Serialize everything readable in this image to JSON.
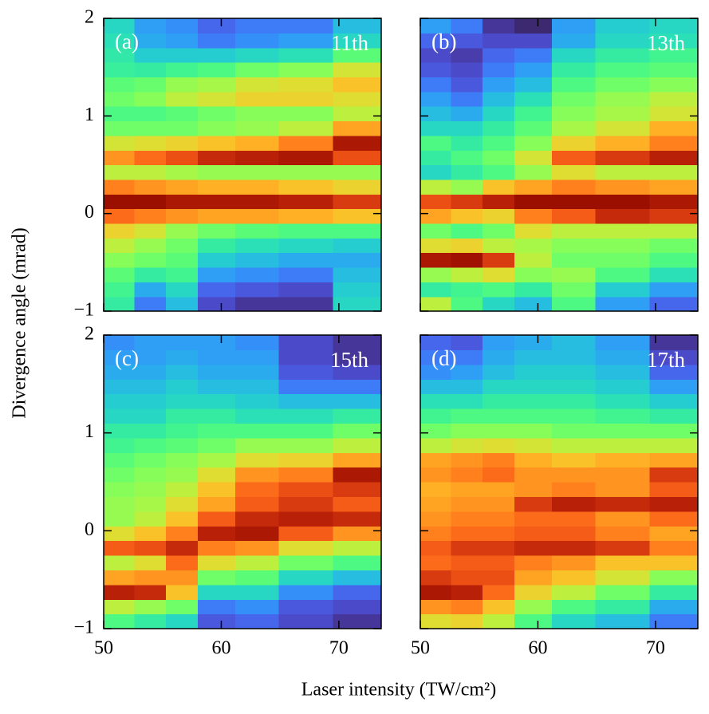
{
  "shared": {
    "xlabel": "Laser intensity (TW/cm²)",
    "ylabel": "Divergence angle (mrad)"
  },
  "chart_data": [
    {
      "type": "heatmap",
      "label": "(a)",
      "annotation": "11th",
      "colormap": "turbo",
      "zlim": [
        0,
        100
      ],
      "xlim": [
        50,
        73.6
      ],
      "ylim": [
        -1,
        2
      ],
      "xticks": [
        50,
        60,
        70
      ],
      "yticks": [
        {
          "value": -1,
          "label": "−1"
        },
        0,
        1,
        2
      ],
      "x_edges": [
        50,
        52.6,
        55.3,
        58,
        61.2,
        64.9,
        69.5,
        73.6
      ],
      "y_edges": [
        -1,
        -0.85,
        -0.7,
        -0.55,
        -0.4,
        -0.25,
        -0.1,
        0.05,
        0.2,
        0.35,
        0.5,
        0.65,
        0.8,
        0.95,
        1.1,
        1.25,
        1.4,
        1.55,
        1.7,
        1.85,
        2
      ],
      "z": [
        [
          35,
          38,
          42,
          48,
          55,
          62,
          78,
          95,
          75,
          55,
          72,
          58,
          45,
          40,
          45,
          42,
          36,
          34,
          32,
          30
        ],
        [
          15,
          22,
          35,
          45,
          50,
          58,
          75,
          95,
          72,
          55,
          78,
          60,
          45,
          40,
          48,
          44,
          35,
          28,
          22,
          20
        ],
        [
          25,
          30,
          38,
          42,
          45,
          50,
          72,
          92,
          70,
          52,
          82,
          62,
          45,
          42,
          55,
          50,
          38,
          28,
          20,
          18
        ],
        [
          8,
          12,
          20,
          28,
          35,
          45,
          70,
          92,
          68,
          50,
          88,
          65,
          48,
          45,
          58,
          52,
          40,
          28,
          15,
          12
        ],
        [
          5,
          10,
          18,
          25,
          32,
          42,
          70,
          92,
          68,
          50,
          90,
          68,
          50,
          48,
          62,
          58,
          45,
          30,
          18,
          15
        ],
        [
          5,
          8,
          15,
          22,
          30,
          40,
          68,
          90,
          65,
          50,
          92,
          75,
          55,
          48,
          62,
          60,
          48,
          32,
          20,
          15
        ],
        [
          30,
          28,
          25,
          22,
          28,
          40,
          65,
          85,
          62,
          50,
          82,
          92,
          70,
          55,
          60,
          65,
          58,
          42,
          30,
          25
        ]
      ]
    },
    {
      "type": "heatmap",
      "label": "(b)",
      "annotation": "13th",
      "colormap": "turbo",
      "zlim": [
        0,
        100
      ],
      "xlim": [
        50,
        73.6
      ],
      "ylim": [
        -1,
        2
      ],
      "xticks": [
        50,
        60,
        70
      ],
      "yticks": [
        -1,
        0,
        1,
        2
      ],
      "x_edges": [
        50,
        52.6,
        55.3,
        58,
        61.2,
        64.9,
        69.5,
        73.6
      ],
      "y_edges": [
        -1,
        -0.85,
        -0.7,
        -0.55,
        -0.4,
        -0.25,
        -0.1,
        0.05,
        0.2,
        0.35,
        0.5,
        0.65,
        0.8,
        0.95,
        1.1,
        1.25,
        1.4,
        1.55,
        1.7,
        1.85,
        2
      ],
      "z": [
        [
          55,
          35,
          50,
          92,
          60,
          45,
          70,
          82,
          55,
          30,
          35,
          40,
          30,
          25,
          20,
          15,
          10,
          8,
          12,
          20
        ],
        [
          40,
          38,
          55,
          94,
          62,
          40,
          65,
          85,
          50,
          35,
          40,
          35,
          30,
          22,
          15,
          10,
          8,
          6,
          10,
          15
        ],
        [
          30,
          40,
          60,
          85,
          55,
          45,
          62,
          90,
          65,
          40,
          45,
          40,
          35,
          30,
          25,
          20,
          15,
          12,
          8,
          5
        ],
        [
          25,
          35,
          48,
          55,
          52,
          60,
          75,
          95,
          70,
          50,
          58,
          48,
          42,
          38,
          32,
          25,
          20,
          15,
          8,
          3
        ],
        [
          40,
          45,
          50,
          45,
          48,
          55,
          80,
          95,
          75,
          60,
          80,
          62,
          52,
          48,
          45,
          40,
          35,
          30,
          22,
          20
        ],
        [
          20,
          28,
          40,
          45,
          48,
          55,
          88,
          95,
          72,
          55,
          85,
          68,
          58,
          52,
          50,
          45,
          40,
          35,
          30,
          28
        ],
        [
          12,
          20,
          32,
          40,
          45,
          55,
          85,
          92,
          70,
          55,
          90,
          75,
          68,
          58,
          55,
          48,
          42,
          38,
          32,
          30
        ]
      ]
    },
    {
      "type": "heatmap",
      "label": "(c)",
      "annotation": "15th",
      "colormap": "turbo",
      "zlim": [
        0,
        100
      ],
      "xlim": [
        50,
        73.6
      ],
      "ylim": [
        -1,
        2
      ],
      "xticks": [
        50,
        60,
        70
      ],
      "yticks": [
        {
          "value": -1,
          "label": "−1"
        },
        0,
        1,
        2
      ],
      "x_edges": [
        50,
        52.6,
        55.3,
        58,
        61.2,
        64.9,
        69.5,
        73.6
      ],
      "y_edges": [
        -1,
        -0.85,
        -0.7,
        -0.55,
        -0.4,
        -0.25,
        -0.1,
        0.05,
        0.2,
        0.35,
        0.5,
        0.65,
        0.8,
        0.95,
        1.1,
        1.25,
        1.4,
        1.55,
        1.7,
        1.85,
        2
      ],
      "z": [
        [
          40,
          55,
          90,
          70,
          55,
          80,
          60,
          50,
          50,
          48,
          45,
          42,
          38,
          35,
          30,
          28,
          25,
          22,
          20,
          18
        ],
        [
          35,
          50,
          88,
          72,
          60,
          82,
          65,
          55,
          52,
          50,
          48,
          45,
          40,
          35,
          30,
          28,
          25,
          22,
          20,
          20
        ],
        [
          30,
          45,
          65,
          72,
          78,
          88,
          75,
          65,
          60,
          55,
          50,
          48,
          42,
          38,
          35,
          30,
          28,
          25,
          22,
          20
        ],
        [
          10,
          15,
          30,
          45,
          60,
          75,
          90,
          80,
          70,
          65,
          60,
          52,
          45,
          40,
          35,
          30,
          25,
          22,
          20,
          20
        ],
        [
          12,
          18,
          30,
          42,
          55,
          72,
          92,
          88,
          80,
          78,
          72,
          60,
          50,
          40,
          32,
          28,
          25,
          22,
          20,
          18
        ],
        [
          8,
          10,
          18,
          30,
          45,
          60,
          80,
          90,
          85,
          82,
          75,
          62,
          50,
          40,
          32,
          25,
          15,
          10,
          8,
          8
        ],
        [
          5,
          8,
          12,
          25,
          40,
          55,
          72,
          88,
          80,
          85,
          92,
          70,
          55,
          45,
          35,
          25,
          15,
          8,
          5,
          5
        ]
      ]
    },
    {
      "type": "heatmap",
      "label": "(d)",
      "annotation": "17th",
      "colormap": "turbo",
      "zlim": [
        0,
        100
      ],
      "xlim": [
        50,
        73.6
      ],
      "ylim": [
        -1,
        2
      ],
      "xticks": [
        50,
        60,
        70
      ],
      "yticks": [
        -1,
        0,
        1,
        2
      ],
      "x_edges": [
        50,
        52.6,
        55.3,
        58,
        61.2,
        64.9,
        69.5,
        73.6
      ],
      "y_edges": [
        -1,
        -0.85,
        -0.7,
        -0.55,
        -0.4,
        -0.25,
        -0.1,
        0.05,
        0.2,
        0.35,
        0.5,
        0.65,
        0.8,
        0.95,
        1.1,
        1.25,
        1.4,
        1.55,
        1.7,
        1.85,
        2
      ],
      "z": [
        [
          60,
          72,
          92,
          85,
          78,
          80,
          75,
          72,
          70,
          68,
          72,
          70,
          55,
          45,
          38,
          32,
          25,
          18,
          15,
          12
        ],
        [
          62,
          75,
          90,
          82,
          80,
          85,
          78,
          75,
          72,
          70,
          75,
          72,
          58,
          48,
          40,
          32,
          25,
          20,
          15,
          10
        ],
        [
          55,
          65,
          78,
          82,
          80,
          85,
          78,
          75,
          72,
          70,
          78,
          75,
          60,
          48,
          40,
          35,
          30,
          25,
          22,
          20
        ],
        [
          40,
          50,
          62,
          70,
          75,
          88,
          80,
          78,
          85,
          72,
          72,
          68,
          58,
          48,
          40,
          35,
          30,
          28,
          25,
          22
        ],
        [
          30,
          40,
          55,
          65,
          72,
          88,
          80,
          78,
          90,
          75,
          72,
          65,
          55,
          45,
          40,
          35,
          30,
          28,
          25,
          25
        ],
        [
          25,
          35,
          45,
          58,
          65,
          85,
          75,
          72,
          88,
          72,
          72,
          68,
          55,
          45,
          38,
          32,
          28,
          25,
          22,
          20
        ],
        [
          15,
          22,
          35,
          48,
          65,
          75,
          70,
          78,
          90,
          80,
          85,
          70,
          55,
          45,
          35,
          28,
          20,
          12,
          8,
          5
        ]
      ]
    }
  ]
}
